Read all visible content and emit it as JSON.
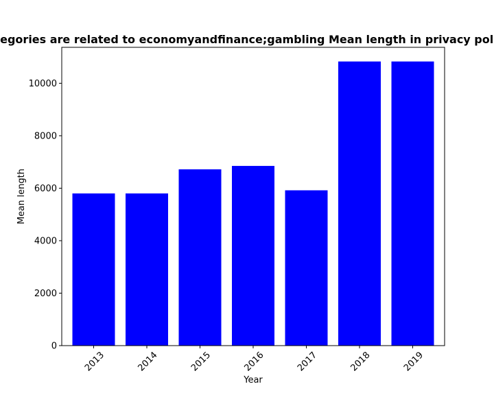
{
  "chart_data": {
    "type": "bar",
    "title": "Categories are related to economyandfinance;gambling Mean length in privacy policies",
    "xlabel": "Year",
    "ylabel": "Mean length",
    "categories": [
      "2013",
      "2014",
      "2015",
      "2016",
      "2017",
      "2018",
      "2019"
    ],
    "values": [
      5800,
      5800,
      6720,
      6850,
      5920,
      10830,
      10830
    ],
    "ylim": [
      0,
      11370
    ],
    "yticks": [
      0,
      2000,
      4000,
      6000,
      8000,
      10000
    ],
    "ytick_labels": [
      "0",
      "2000",
      "4000",
      "6000",
      "8000",
      "10000"
    ],
    "bar_color": "#0000ff",
    "grid": false,
    "legend": "none"
  }
}
